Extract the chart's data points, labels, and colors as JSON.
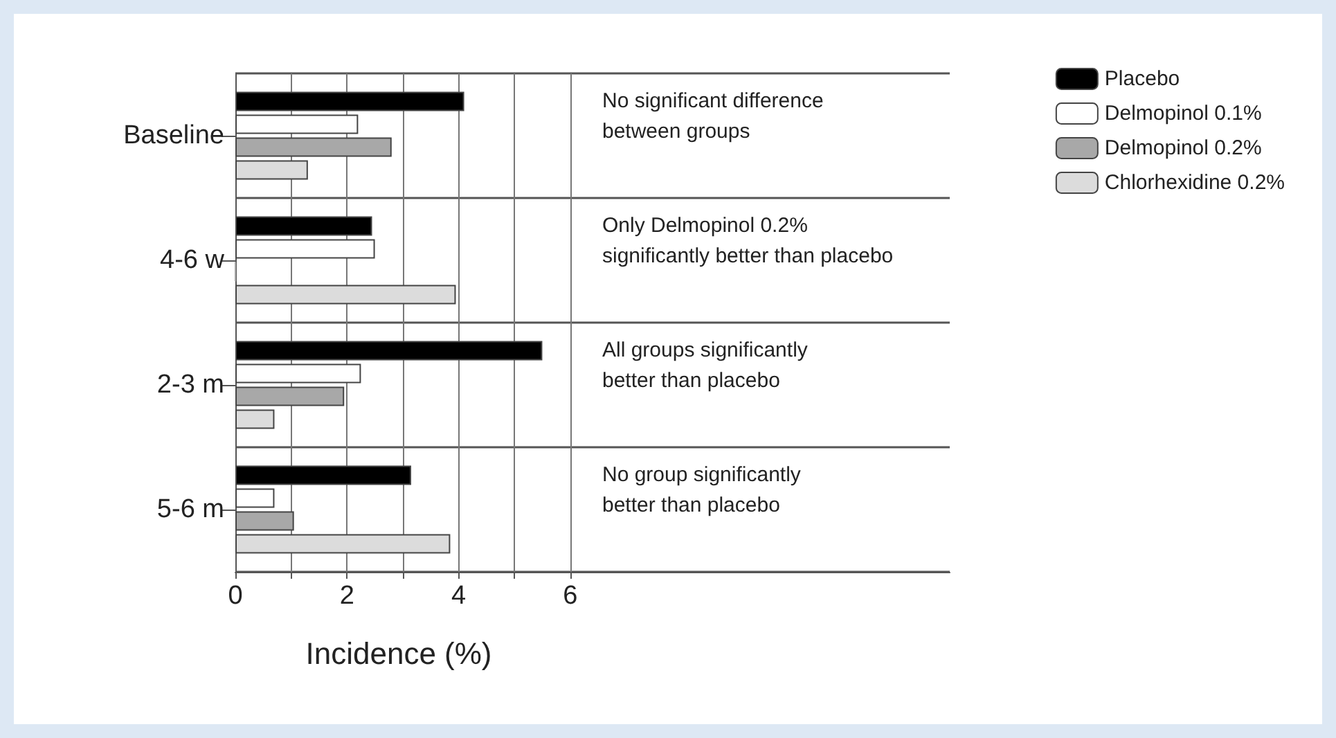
{
  "chart_data": {
    "type": "bar",
    "orientation": "horizontal",
    "xlabel": "Incidence (%)",
    "categories": [
      "Baseline",
      "4-6 w",
      "2-3 m",
      "5-6 m"
    ],
    "series": [
      {
        "name": "Placebo",
        "color": "#000000",
        "values": [
          4.1,
          2.45,
          5.5,
          3.15
        ]
      },
      {
        "name": "Delmopinol 0.1%",
        "color": "#ffffff",
        "values": [
          2.2,
          2.5,
          2.25,
          0.7
        ]
      },
      {
        "name": "Delmopinol 0.2%",
        "color": "#a8a8a8",
        "values": [
          2.8,
          0,
          1.95,
          1.05
        ]
      },
      {
        "name": "Chlorhexidine 0.2%",
        "color": "#dcdcdc",
        "values": [
          1.3,
          3.95,
          0.7,
          3.85
        ]
      }
    ],
    "xlim": [
      0,
      12.8
    ],
    "xticks": [
      0,
      {
        "value": 1,
        "label": null
      },
      2,
      {
        "value": 3,
        "label": null
      },
      4,
      {
        "value": 5,
        "label": null
      },
      6
    ],
    "grid": true,
    "legend": "top right",
    "annotations": [
      "No significant difference\nbetween groups",
      "Only Delmopinol 0.2%\nsignificantly better than placebo",
      "All groups significantly\nbetter than placebo",
      "No group significantly\nbetter than placebo"
    ]
  }
}
